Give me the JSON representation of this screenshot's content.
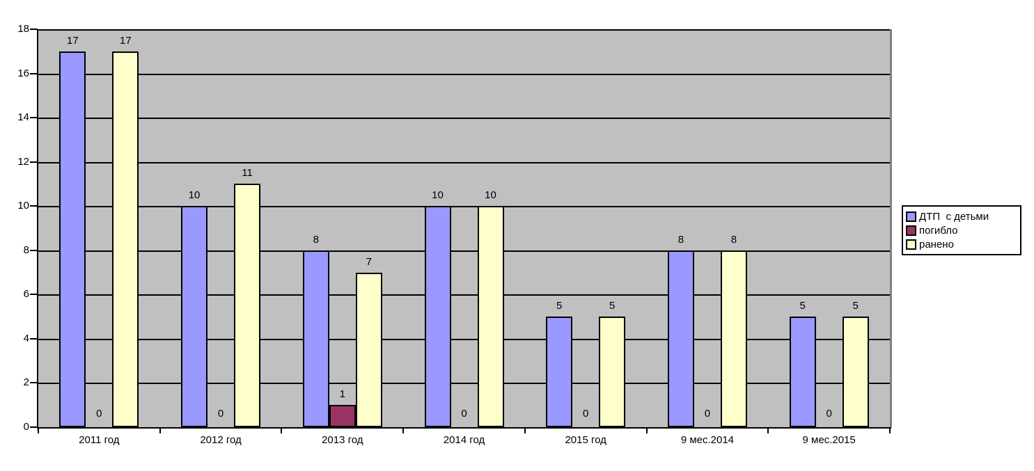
{
  "chart_data": {
    "type": "bar",
    "title": "",
    "categories": [
      "2011 год",
      "2012 год",
      "2013 год",
      "2014 год",
      "2015 год",
      "9 мес.2014",
      "9 мес.2015"
    ],
    "series": [
      {
        "name": "ДТП  с детьми",
        "color": "#9999FF",
        "values": [
          17,
          10,
          8,
          10,
          5,
          8,
          5
        ]
      },
      {
        "name": "погибло",
        "color": "#993366",
        "values": [
          0,
          0,
          1,
          0,
          0,
          0,
          0
        ]
      },
      {
        "name": "ранено",
        "color": "#FFFFCC",
        "values": [
          17,
          11,
          7,
          10,
          5,
          8,
          5
        ]
      }
    ],
    "ylim": [
      0,
      18
    ],
    "yticks": [
      0,
      2,
      4,
      6,
      8,
      10,
      12,
      14,
      16,
      18
    ],
    "grid": true,
    "data_labels": true,
    "legend_position": "right"
  },
  "colors": {
    "page_background": "#FFFFFF",
    "plot_background": "#C0C0C0",
    "gridline": "#000000",
    "axis": "#000000",
    "bar_border": "#000000",
    "plot_shadow": "#808080",
    "text": "#000000",
    "legend_background": "#FFFFFF",
    "legend_border": "#000000"
  }
}
